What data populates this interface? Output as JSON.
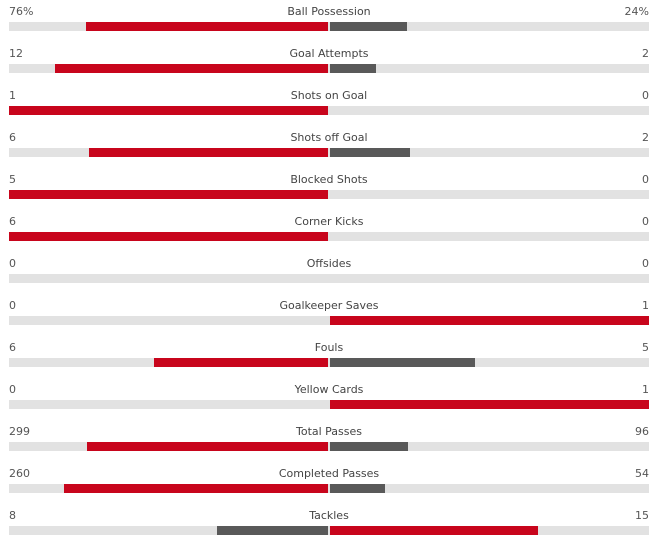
{
  "colors": {
    "lead": "#c8051c",
    "trail": "#595959",
    "track": "#e2e2e2"
  },
  "stats": [
    {
      "name": "Ball Possession",
      "home": "76%",
      "away": "24%",
      "home_value": 76,
      "away_value": 24
    },
    {
      "name": "Goal Attempts",
      "home": "12",
      "away": "2",
      "home_value": 12,
      "away_value": 2
    },
    {
      "name": "Shots on Goal",
      "home": "1",
      "away": "0",
      "home_value": 1,
      "away_value": 0
    },
    {
      "name": "Shots off Goal",
      "home": "6",
      "away": "2",
      "home_value": 6,
      "away_value": 2
    },
    {
      "name": "Blocked Shots",
      "home": "5",
      "away": "0",
      "home_value": 5,
      "away_value": 0
    },
    {
      "name": "Corner Kicks",
      "home": "6",
      "away": "0",
      "home_value": 6,
      "away_value": 0
    },
    {
      "name": "Offsides",
      "home": "0",
      "away": "0",
      "home_value": 0,
      "away_value": 0
    },
    {
      "name": "Goalkeeper Saves",
      "home": "0",
      "away": "1",
      "home_value": 0,
      "away_value": 1
    },
    {
      "name": "Fouls",
      "home": "6",
      "away": "5",
      "home_value": 6,
      "away_value": 5
    },
    {
      "name": "Yellow Cards",
      "home": "0",
      "away": "1",
      "home_value": 0,
      "away_value": 1
    },
    {
      "name": "Total Passes",
      "home": "299",
      "away": "96",
      "home_value": 299,
      "away_value": 96
    },
    {
      "name": "Completed Passes",
      "home": "260",
      "away": "54",
      "home_value": 260,
      "away_value": 54
    },
    {
      "name": "Tackles",
      "home": "8",
      "away": "15",
      "home_value": 8,
      "away_value": 15
    }
  ]
}
